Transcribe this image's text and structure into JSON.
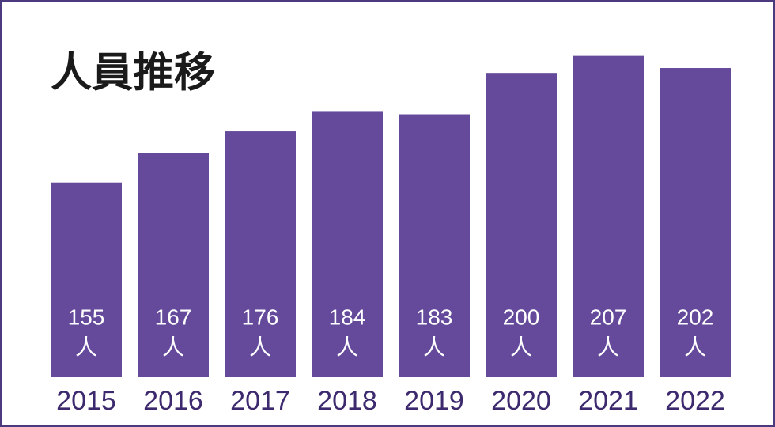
{
  "chart_data": {
    "type": "bar",
    "title": "人員推移",
    "categories": [
      "2015",
      "2016",
      "2017",
      "2018",
      "2019",
      "2020",
      "2021",
      "2022"
    ],
    "values": [
      155,
      167,
      176,
      184,
      183,
      200,
      207,
      202
    ],
    "unit": "人",
    "color": "#654a9c",
    "ylim": [
      75,
      215
    ]
  }
}
